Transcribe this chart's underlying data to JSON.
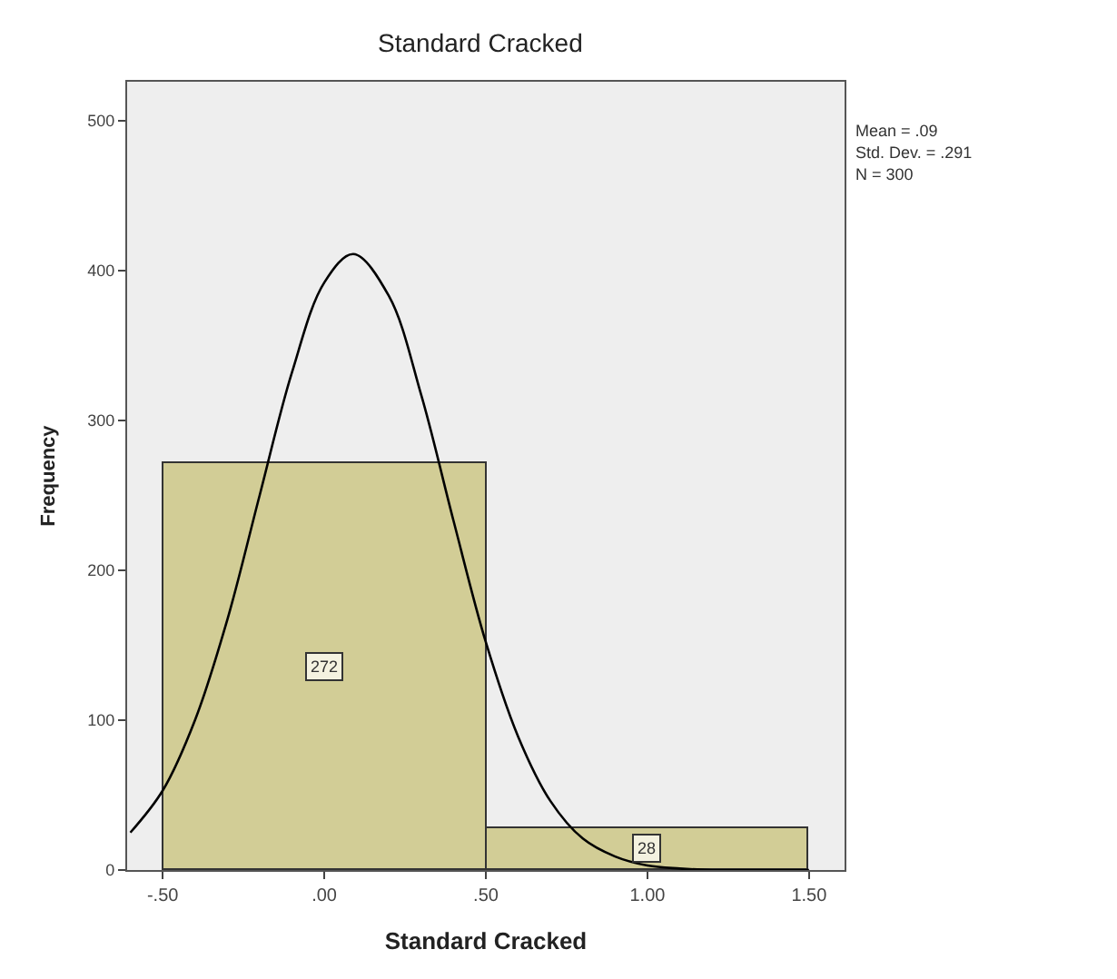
{
  "chart_data": {
    "type": "histogram",
    "title": "Standard Cracked",
    "xlabel": "Standard Cracked",
    "ylabel": "Frequency",
    "bins": [
      -0.5,
      0.5,
      1.5
    ],
    "values": [
      272,
      28
    ],
    "value_labels": [
      "272",
      "28"
    ],
    "color": "#d2cd96",
    "series": [
      {
        "type": "line",
        "color": "#000000",
        "x": [
          -0.6,
          -0.5,
          -0.4,
          -0.3,
          -0.2,
          -0.1,
          0.0,
          0.09,
          0.2,
          0.3,
          0.4,
          0.5,
          0.6,
          0.7,
          0.8,
          0.9,
          1.0,
          1.1,
          1.2,
          1.3,
          1.4,
          1.5
        ],
        "values": [
          25,
          53,
          100,
          167,
          250,
          332,
          392,
          411,
          383,
          317,
          233,
          152,
          89,
          46,
          21,
          9,
          3,
          1,
          0,
          0,
          0,
          0
        ]
      }
    ],
    "annotations": [
      "Mean = .09",
      "Std. Dev. = .291",
      "N = 300"
    ],
    "xlim": [
      -0.61,
      1.61
    ],
    "ylim": [
      0,
      526
    ],
    "xticks": [
      {
        "value": -0.5,
        "label": "-.50"
      },
      {
        "value": 0,
        "label": ".00"
      },
      {
        "value": 0.5,
        "label": ".50"
      },
      {
        "value": 1.0,
        "label": "1.00"
      },
      {
        "value": 1.5,
        "label": "1.50"
      }
    ],
    "yticks": [
      0,
      100,
      200,
      300,
      400,
      500
    ],
    "grid": false
  }
}
